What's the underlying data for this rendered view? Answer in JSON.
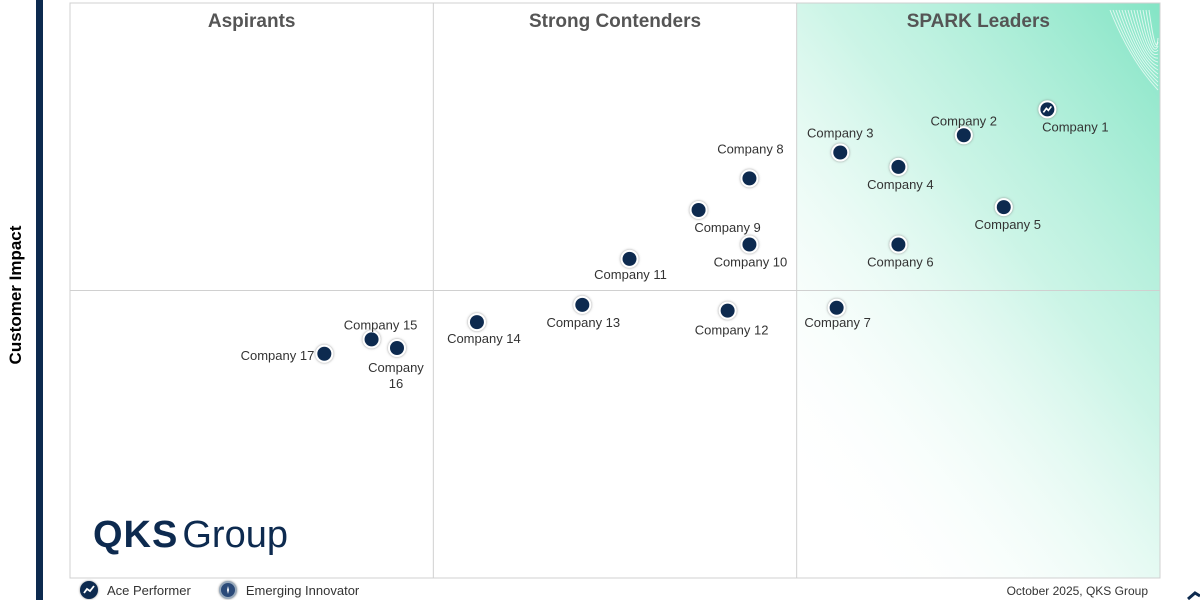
{
  "chart_data": {
    "type": "scatter",
    "title": "",
    "ylabel": "Customer Impact",
    "xlabel": "",
    "xlim": [
      0,
      3
    ],
    "ylim": [
      0,
      2
    ],
    "quadrants": [
      "Aspirants",
      "Strong Contenders",
      "SPARK Leaders"
    ],
    "points": [
      {
        "name": "Company 1",
        "x": 2.69,
        "y": 1.63,
        "ace": true
      },
      {
        "name": "Company 2",
        "x": 2.46,
        "y": 1.54,
        "ace": false
      },
      {
        "name": "Company 3",
        "x": 2.12,
        "y": 1.48,
        "ace": false
      },
      {
        "name": "Company 4",
        "x": 2.28,
        "y": 1.43,
        "ace": false
      },
      {
        "name": "Company 5",
        "x": 2.57,
        "y": 1.29,
        "ace": false
      },
      {
        "name": "Company 6",
        "x": 2.28,
        "y": 1.16,
        "ace": false
      },
      {
        "name": "Company 7",
        "x": 2.11,
        "y": 0.94,
        "ace": false
      },
      {
        "name": "Company 8",
        "x": 1.87,
        "y": 1.39,
        "ace": false
      },
      {
        "name": "Company 9",
        "x": 1.73,
        "y": 1.28,
        "ace": false
      },
      {
        "name": "Company 10",
        "x": 1.87,
        "y": 1.16,
        "ace": false
      },
      {
        "name": "Company 11",
        "x": 1.54,
        "y": 1.11,
        "ace": false
      },
      {
        "name": "Company 12",
        "x": 1.81,
        "y": 0.93,
        "ace": false
      },
      {
        "name": "Company 13",
        "x": 1.41,
        "y": 0.95,
        "ace": false
      },
      {
        "name": "Company 14",
        "x": 1.12,
        "y": 0.89,
        "ace": false
      },
      {
        "name": "Company 15",
        "x": 0.83,
        "y": 0.83,
        "ace": false
      },
      {
        "name": "Company 16",
        "x": 0.9,
        "y": 0.8,
        "ace": false
      },
      {
        "name": "Company 17",
        "x": 0.7,
        "y": 0.78,
        "ace": false
      }
    ]
  },
  "logo": {
    "qks": "QKS",
    "group": "Group"
  },
  "legend": {
    "ace_label": "Ace Performer",
    "emerging_label": "Emerging Innovator"
  },
  "footer": {
    "note": "October 2025, QKS Group"
  },
  "colors": {
    "dot": "#0d2a4f",
    "leader_bg": "#7de3c2",
    "grid": "#d0d0d0"
  }
}
